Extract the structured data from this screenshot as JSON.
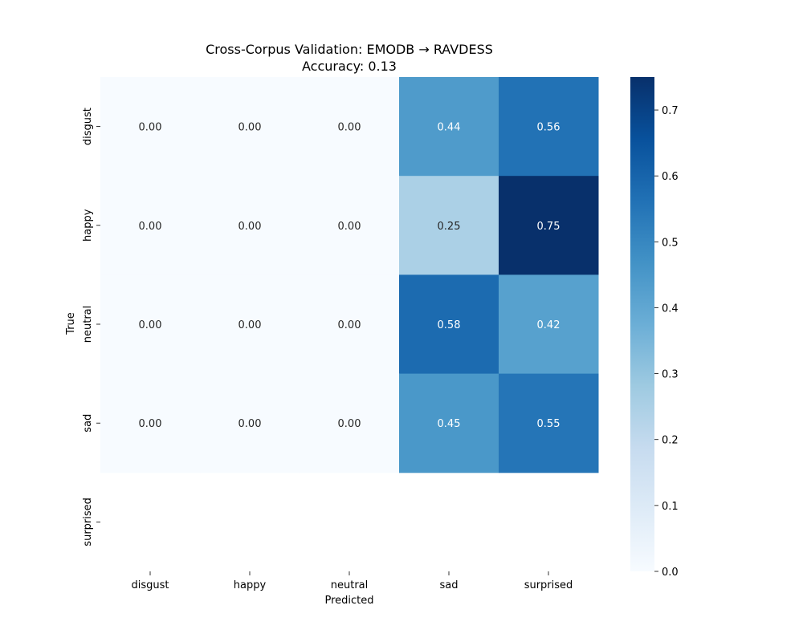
{
  "chart_data": {
    "type": "heatmap",
    "title": "Cross-Corpus Validation: EMODB → RAVDESS",
    "subtitle": "Accuracy: 0.13",
    "xlabel": "Predicted",
    "ylabel": "True",
    "x_categories": [
      "disgust",
      "happy",
      "neutral",
      "sad",
      "surprised"
    ],
    "y_categories": [
      "disgust",
      "happy",
      "neutral",
      "sad",
      "surprised"
    ],
    "values": [
      [
        0.0,
        0.0,
        0.0,
        0.44,
        0.56
      ],
      [
        0.0,
        0.0,
        0.0,
        0.25,
        0.75
      ],
      [
        0.0,
        0.0,
        0.0,
        0.58,
        0.42
      ],
      [
        0.0,
        0.0,
        0.0,
        0.45,
        0.55
      ],
      [
        null,
        null,
        null,
        null,
        null
      ]
    ],
    "cell_labels": [
      [
        "0.00",
        "0.00",
        "0.00",
        "0.44",
        "0.56"
      ],
      [
        "0.00",
        "0.00",
        "0.00",
        "0.25",
        "0.75"
      ],
      [
        "0.00",
        "0.00",
        "0.00",
        "0.58",
        "0.42"
      ],
      [
        "0.00",
        "0.00",
        "0.00",
        "0.45",
        "0.55"
      ],
      [
        "",
        "",
        "",
        "",
        ""
      ]
    ],
    "colormap": "Blues",
    "colorbar": {
      "range": [
        0.0,
        0.75
      ],
      "ticks": [
        0.0,
        0.1,
        0.2,
        0.3,
        0.4,
        0.5,
        0.6,
        0.7
      ],
      "tick_labels": [
        "0.0",
        "0.1",
        "0.2",
        "0.3",
        "0.4",
        "0.5",
        "0.6",
        "0.7"
      ],
      "placement": "right"
    },
    "grid": false
  }
}
